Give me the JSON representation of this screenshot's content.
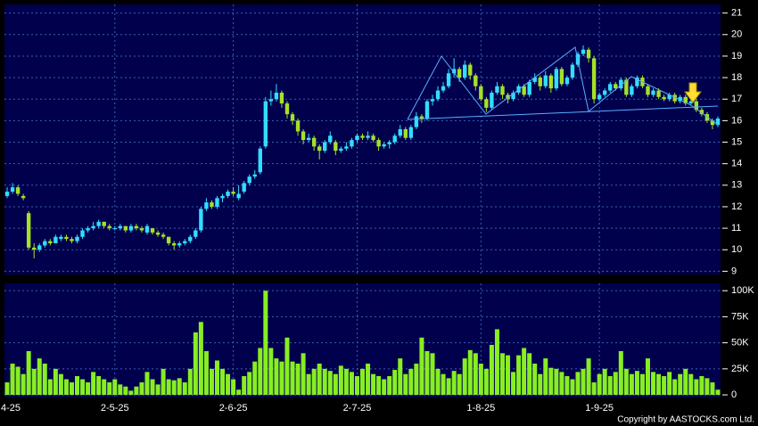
{
  "chart_data": [
    {
      "type": "candlestick",
      "categories": [
        "4-25",
        null,
        null,
        null,
        null,
        null,
        null,
        null,
        null,
        null,
        null,
        null,
        null,
        null,
        null,
        null,
        null,
        null,
        null,
        null,
        "2-5-25",
        null,
        null,
        null,
        null,
        null,
        null,
        null,
        null,
        null,
        null,
        null,
        null,
        null,
        null,
        null,
        null,
        null,
        null,
        null,
        null,
        null,
        "2-6-25",
        null,
        null,
        null,
        null,
        null,
        null,
        null,
        null,
        null,
        null,
        null,
        null,
        null,
        null,
        null,
        null,
        null,
        null,
        null,
        null,
        null,
        null,
        "2-7-25",
        null,
        null,
        null,
        null,
        null,
        null,
        null,
        null,
        null,
        null,
        null,
        null,
        null,
        null,
        null,
        null,
        null,
        null,
        null,
        null,
        null,
        null,
        "1-8-25",
        null,
        null,
        null,
        null,
        null,
        null,
        null,
        null,
        null,
        null,
        null,
        null,
        null,
        null,
        null,
        null,
        null,
        null,
        null,
        null,
        null,
        "1-9-25",
        null,
        null,
        null,
        null,
        null,
        null,
        null,
        null,
        null,
        null,
        null,
        null,
        null,
        null,
        null,
        null,
        null,
        null,
        null,
        null,
        null,
        null
      ],
      "ohlc": [
        [
          12.5,
          12.9,
          12.4,
          12.7
        ],
        [
          12.7,
          13.1,
          12.6,
          12.9
        ],
        [
          12.9,
          13.0,
          12.5,
          12.6
        ],
        [
          12.5,
          12.6,
          12.3,
          12.4
        ],
        [
          11.7,
          11.8,
          10.0,
          10.1
        ],
        [
          10.1,
          10.3,
          9.6,
          10.0
        ],
        [
          10.0,
          10.3,
          9.9,
          10.2
        ],
        [
          10.2,
          10.5,
          10.1,
          10.4
        ],
        [
          10.4,
          10.5,
          10.2,
          10.3
        ],
        [
          10.3,
          10.7,
          10.3,
          10.6
        ],
        [
          10.5,
          10.7,
          10.4,
          10.6
        ],
        [
          10.6,
          10.7,
          10.4,
          10.5
        ],
        [
          10.5,
          10.6,
          10.3,
          10.4
        ],
        [
          10.4,
          10.7,
          10.3,
          10.6
        ],
        [
          10.6,
          11.0,
          10.5,
          10.9
        ],
        [
          10.9,
          11.1,
          10.8,
          11.0
        ],
        [
          11.0,
          11.3,
          10.9,
          11.1
        ],
        [
          11.1,
          11.4,
          11.0,
          11.3
        ],
        [
          11.3,
          11.3,
          11.0,
          11.1
        ],
        [
          11.1,
          11.2,
          10.9,
          11.0
        ],
        [
          11.0,
          11.1,
          10.9,
          11.0
        ],
        [
          11.0,
          11.2,
          10.9,
          11.1
        ],
        [
          11.1,
          11.1,
          10.8,
          10.9
        ],
        [
          10.9,
          11.2,
          10.8,
          11.1
        ],
        [
          11.1,
          11.2,
          10.9,
          11.0
        ],
        [
          11.0,
          11.1,
          10.8,
          10.9
        ],
        [
          10.8,
          11.2,
          10.7,
          11.1
        ],
        [
          11.0,
          11.0,
          10.7,
          10.8
        ],
        [
          10.8,
          10.9,
          10.6,
          10.7
        ],
        [
          10.7,
          10.8,
          10.5,
          10.6
        ],
        [
          10.6,
          10.6,
          10.2,
          10.3
        ],
        [
          10.3,
          10.4,
          10.0,
          10.2
        ],
        [
          10.2,
          10.4,
          10.1,
          10.3
        ],
        [
          10.3,
          10.5,
          10.2,
          10.4
        ],
        [
          10.4,
          10.7,
          10.3,
          10.6
        ],
        [
          10.6,
          11.0,
          10.5,
          10.9
        ],
        [
          10.9,
          12.0,
          10.8,
          11.9
        ],
        [
          11.9,
          12.4,
          11.8,
          12.2
        ],
        [
          12.2,
          12.3,
          11.9,
          12.0
        ],
        [
          12.0,
          12.5,
          11.9,
          12.4
        ],
        [
          12.4,
          12.6,
          12.2,
          12.5
        ],
        [
          12.5,
          12.8,
          12.4,
          12.7
        ],
        [
          12.7,
          12.9,
          12.5,
          12.6
        ],
        [
          12.4,
          13.0,
          12.3,
          12.6
        ],
        [
          12.7,
          13.2,
          12.6,
          13.1
        ],
        [
          13.1,
          13.5,
          13.0,
          13.4
        ],
        [
          13.4,
          13.7,
          13.3,
          13.5
        ],
        [
          13.6,
          14.8,
          13.5,
          14.7
        ],
        [
          14.8,
          17.1,
          14.7,
          16.9
        ],
        [
          16.9,
          17.4,
          16.7,
          17.0
        ],
        [
          17.0,
          17.7,
          16.9,
          17.3
        ],
        [
          17.3,
          17.4,
          16.6,
          16.8
        ],
        [
          16.8,
          16.9,
          16.1,
          16.3
        ],
        [
          16.3,
          16.4,
          15.8,
          16.0
        ],
        [
          16.0,
          16.1,
          15.3,
          15.5
        ],
        [
          15.5,
          15.6,
          14.9,
          15.1
        ],
        [
          15.1,
          15.4,
          15.0,
          15.2
        ],
        [
          15.2,
          15.3,
          14.6,
          14.8
        ],
        [
          14.8,
          14.9,
          14.2,
          14.6
        ],
        [
          14.6,
          15.1,
          14.5,
          15.0
        ],
        [
          15.0,
          15.5,
          14.9,
          15.3
        ],
        [
          15.0,
          15.1,
          14.4,
          14.6
        ],
        [
          14.6,
          14.8,
          14.5,
          14.7
        ],
        [
          14.7,
          15.0,
          14.6,
          14.8
        ],
        [
          14.8,
          15.2,
          14.7,
          15.1
        ],
        [
          15.1,
          15.4,
          15.0,
          15.3
        ],
        [
          15.3,
          15.4,
          15.1,
          15.2
        ],
        [
          15.2,
          15.5,
          15.1,
          15.3
        ],
        [
          15.3,
          15.4,
          15.0,
          15.1
        ],
        [
          15.1,
          15.2,
          14.6,
          14.8
        ],
        [
          14.8,
          15.0,
          14.7,
          14.9
        ],
        [
          14.9,
          15.1,
          14.7,
          15.0
        ],
        [
          15.0,
          15.4,
          14.9,
          15.3
        ],
        [
          15.3,
          15.8,
          15.2,
          15.6
        ],
        [
          15.6,
          15.7,
          15.1,
          15.2
        ],
        [
          15.2,
          15.8,
          15.1,
          15.7
        ],
        [
          15.7,
          16.4,
          15.6,
          16.2
        ],
        [
          16.2,
          16.3,
          15.9,
          16.1
        ],
        [
          16.1,
          17.0,
          16.0,
          16.9
        ],
        [
          16.9,
          17.2,
          16.7,
          17.0
        ],
        [
          17.0,
          17.6,
          16.9,
          17.4
        ],
        [
          17.4,
          17.8,
          17.3,
          17.6
        ],
        [
          17.6,
          18.4,
          17.5,
          18.2
        ],
        [
          18.2,
          18.9,
          18.0,
          18.4
        ],
        [
          18.4,
          18.5,
          17.8,
          18.0
        ],
        [
          18.0,
          18.8,
          17.9,
          18.6
        ],
        [
          18.6,
          18.7,
          17.9,
          18.1
        ],
        [
          18.1,
          18.2,
          17.4,
          17.6
        ],
        [
          17.6,
          17.7,
          16.9,
          17.0
        ],
        [
          17.0,
          17.1,
          16.4,
          16.6
        ],
        [
          16.6,
          17.4,
          16.5,
          17.3
        ],
        [
          17.3,
          17.8,
          17.2,
          17.6
        ],
        [
          17.6,
          17.7,
          17.0,
          17.2
        ],
        [
          17.2,
          17.3,
          16.8,
          17.0
        ],
        [
          17.0,
          17.4,
          16.9,
          17.3
        ],
        [
          17.3,
          17.7,
          17.2,
          17.6
        ],
        [
          17.6,
          17.7,
          17.1,
          17.2
        ],
        [
          17.2,
          17.9,
          17.1,
          17.8
        ],
        [
          17.8,
          18.2,
          17.7,
          18.0
        ],
        [
          18.0,
          18.1,
          17.4,
          17.6
        ],
        [
          17.6,
          18.3,
          17.5,
          18.1
        ],
        [
          18.1,
          18.2,
          17.3,
          17.5
        ],
        [
          17.5,
          18.5,
          17.4,
          18.4
        ],
        [
          18.4,
          18.5,
          17.6,
          17.7
        ],
        [
          17.7,
          18.1,
          17.6,
          18.0
        ],
        [
          18.0,
          18.7,
          17.9,
          18.6
        ],
        [
          18.6,
          19.2,
          18.5,
          19.1
        ],
        [
          19.1,
          19.5,
          19.0,
          19.3
        ],
        [
          19.3,
          19.4,
          18.7,
          18.9
        ],
        [
          18.9,
          19.0,
          16.8,
          17.0
        ],
        [
          17.0,
          17.3,
          16.9,
          17.2
        ],
        [
          17.2,
          17.5,
          17.1,
          17.4
        ],
        [
          17.4,
          17.8,
          17.3,
          17.7
        ],
        [
          17.7,
          17.8,
          17.4,
          17.5
        ],
        [
          17.5,
          18.0,
          17.4,
          17.9
        ],
        [
          17.9,
          18.0,
          17.1,
          17.2
        ],
        [
          17.2,
          17.7,
          17.1,
          17.6
        ],
        [
          17.6,
          18.1,
          17.5,
          18.0
        ],
        [
          18.0,
          18.1,
          17.5,
          17.6
        ],
        [
          17.6,
          17.7,
          17.1,
          17.2
        ],
        [
          17.2,
          17.5,
          17.1,
          17.4
        ],
        [
          17.4,
          17.5,
          17.0,
          17.1
        ],
        [
          17.1,
          17.2,
          16.9,
          17.0
        ],
        [
          17.0,
          17.3,
          16.9,
          17.2
        ],
        [
          17.2,
          17.3,
          16.8,
          16.9
        ],
        [
          16.9,
          17.2,
          16.8,
          17.1
        ],
        [
          17.1,
          17.2,
          16.7,
          16.8
        ],
        [
          16.8,
          17.0,
          16.7,
          16.9
        ],
        [
          16.9,
          17.0,
          16.4,
          16.5
        ],
        [
          16.5,
          16.6,
          16.2,
          16.3
        ],
        [
          16.3,
          16.4,
          15.9,
          16.0
        ],
        [
          16.0,
          16.1,
          15.6,
          15.8
        ],
        [
          15.8,
          16.2,
          15.7,
          16.1
        ]
      ],
      "up_color": "#33ddff",
      "down_color": "#a6e02a",
      "ylim": [
        8.85,
        21.4
      ],
      "yticks": [
        9,
        10,
        11,
        12,
        13,
        14,
        15,
        16,
        17,
        18,
        19,
        20,
        21
      ],
      "grid": true
    },
    {
      "type": "bar",
      "values": [
        12000,
        30000,
        27000,
        20000,
        42000,
        25000,
        35000,
        30000,
        15000,
        25000,
        20000,
        15000,
        12000,
        18000,
        15000,
        12000,
        22000,
        18000,
        15000,
        12000,
        15000,
        10000,
        8000,
        4000,
        8000,
        12000,
        22000,
        15000,
        10000,
        25000,
        15000,
        14000,
        16000,
        12000,
        25000,
        60000,
        70000,
        42000,
        25000,
        33000,
        25000,
        20000,
        15000,
        5000,
        18000,
        22000,
        32000,
        45000,
        100000,
        45000,
        35000,
        32000,
        55000,
        32000,
        30000,
        40000,
        20000,
        25000,
        30000,
        25000,
        23000,
        20000,
        28000,
        25000,
        22000,
        18000,
        25000,
        30000,
        20000,
        18000,
        15000,
        18000,
        24000,
        35000,
        20000,
        25000,
        30000,
        55000,
        42000,
        40000,
        25000,
        20000,
        16000,
        23000,
        20000,
        35000,
        43000,
        40000,
        30000,
        25000,
        48000,
        63000,
        40000,
        38000,
        22000,
        38000,
        45000,
        40000,
        30000,
        20000,
        35000,
        26000,
        25000,
        22000,
        18000,
        15000,
        22000,
        25000,
        35000,
        12000,
        20000,
        25000,
        18000,
        22000,
        42000,
        25000,
        20000,
        23000,
        20000,
        35000,
        22000,
        20000,
        18000,
        22000,
        15000,
        20000,
        25000,
        20000,
        15000,
        18000,
        16000,
        12000,
        5000
      ],
      "color": "#88ee22",
      "ylim": [
        -2500,
        107000
      ],
      "yticks": [
        0,
        {
          "value": 25000,
          "label": "25K"
        },
        {
          "value": 50000,
          "label": "50K"
        },
        {
          "value": 75000,
          "label": "75K"
        },
        {
          "value": 100000,
          "label": "100K"
        }
      ],
      "grid": true,
      "footer": "Copyright by AASTOCKS.com Ltd."
    }
  ]
}
